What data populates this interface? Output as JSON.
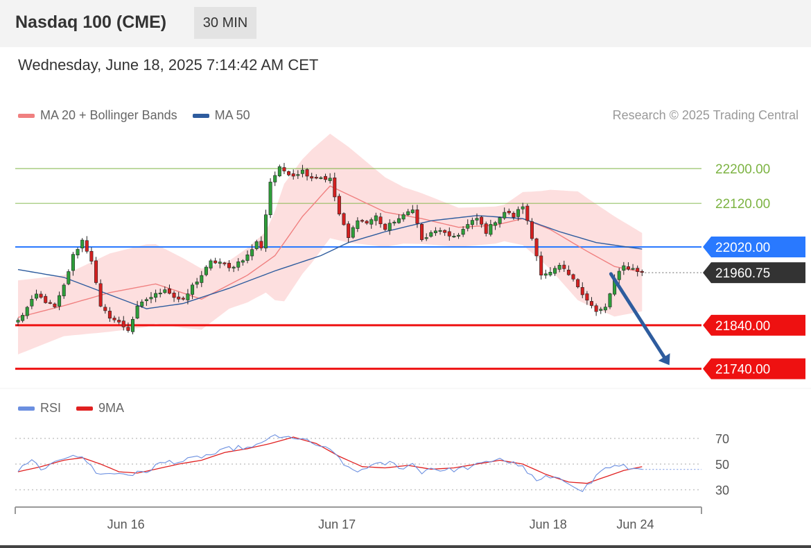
{
  "header": {
    "title": "Nasdaq 100 (CME)",
    "interval": "30 MIN"
  },
  "datetime": "Wednesday, June 18, 2025 7:14:42 AM CET",
  "legend": {
    "bb_label": "MA 20 + Bollinger Bands",
    "bb_color": "#f08080",
    "ma50_label": "MA 50",
    "ma50_color": "#2e5c9e"
  },
  "copyright": "Research © 2025 Trading Central",
  "rsi_legend": {
    "rsi_label": "RSI",
    "rsi_color": "#6b8fe0",
    "ma9_label": "9MA",
    "ma9_color": "#e02020"
  },
  "chart_data": [
    {
      "type": "candlestick",
      "instrument": "Nasdaq 100 (CME)",
      "interval": "30 MIN",
      "ylim": [
        21725,
        22275
      ],
      "x_ticks": [
        {
          "label": "Jun 16",
          "index": 22
        },
        {
          "label": "Jun 17",
          "index": 68
        },
        {
          "label": "Jun 18",
          "index": 114
        },
        {
          "label": "Jun 24",
          "index": 133
        }
      ],
      "levels": [
        {
          "value": 22200.0,
          "label": "22200.00",
          "kind": "resistance",
          "color": "#7cb342"
        },
        {
          "value": 22120.0,
          "label": "22120.00",
          "kind": "resistance",
          "color": "#7cb342"
        },
        {
          "value": 22020.0,
          "label": "22020.00",
          "kind": "pivot",
          "color": "#2979ff"
        },
        {
          "value": 21840.0,
          "label": "21840.00",
          "kind": "support",
          "color": "#ee1111"
        },
        {
          "value": 21740.0,
          "label": "21740.00",
          "kind": "support",
          "color": "#ee1111"
        }
      ],
      "last_price": {
        "value": 21960.75,
        "label": "21960.75"
      },
      "forecast": {
        "from_index": 128,
        "from_value": 21958,
        "to_index": 135,
        "to_value": 21742,
        "color": "#2e5c9e"
      },
      "close_anchors": [
        [
          0,
          21850
        ],
        [
          4,
          21910
        ],
        [
          8,
          21880
        ],
        [
          10,
          21930
        ],
        [
          12,
          22000
        ],
        [
          14,
          22035
        ],
        [
          16,
          21990
        ],
        [
          18,
          21880
        ],
        [
          20,
          21860
        ],
        [
          22,
          21845
        ],
        [
          24,
          21830
        ],
        [
          26,
          21880
        ],
        [
          28,
          21900
        ],
        [
          30,
          21910
        ],
        [
          32,
          21925
        ],
        [
          34,
          21905
        ],
        [
          36,
          21895
        ],
        [
          38,
          21930
        ],
        [
          40,
          21955
        ],
        [
          42,
          21985
        ],
        [
          44,
          21985
        ],
        [
          46,
          21970
        ],
        [
          48,
          21985
        ],
        [
          50,
          22000
        ],
        [
          52,
          22030
        ],
        [
          53,
          22020
        ],
        [
          55,
          22170
        ],
        [
          57,
          22200
        ],
        [
          60,
          22185
        ],
        [
          62,
          22195
        ],
        [
          64,
          22180
        ],
        [
          66,
          22180
        ],
        [
          68,
          22175
        ],
        [
          70,
          22095
        ],
        [
          72,
          22040
        ],
        [
          74,
          22085
        ],
        [
          76,
          22075
        ],
        [
          78,
          22090
        ],
        [
          80,
          22060
        ],
        [
          82,
          22080
        ],
        [
          84,
          22090
        ],
        [
          86,
          22110
        ],
        [
          88,
          22035
        ],
        [
          90,
          22050
        ],
        [
          92,
          22060
        ],
        [
          94,
          22040
        ],
        [
          96,
          22050
        ],
        [
          98,
          22070
        ],
        [
          100,
          22085
        ],
        [
          102,
          22055
        ],
        [
          104,
          22080
        ],
        [
          106,
          22100
        ],
        [
          108,
          22090
        ],
        [
          110,
          22115
        ],
        [
          112,
          22040
        ],
        [
          114,
          21960
        ],
        [
          116,
          21960
        ],
        [
          118,
          21975
        ],
        [
          120,
          21955
        ],
        [
          122,
          21930
        ],
        [
          124,
          21900
        ],
        [
          126,
          21870
        ],
        [
          128,
          21880
        ],
        [
          130,
          21945
        ],
        [
          132,
          21975
        ],
        [
          134,
          21970
        ],
        [
          136,
          21962
        ]
      ],
      "ma20_anchors": [
        [
          0,
          21858
        ],
        [
          10,
          21885
        ],
        [
          20,
          21915
        ],
        [
          30,
          21935
        ],
        [
          40,
          21900
        ],
        [
          50,
          21955
        ],
        [
          56,
          22000
        ],
        [
          62,
          22090
        ],
        [
          68,
          22160
        ],
        [
          74,
          22130
        ],
        [
          80,
          22100
        ],
        [
          88,
          22085
        ],
        [
          96,
          22065
        ],
        [
          104,
          22070
        ],
        [
          110,
          22085
        ],
        [
          116,
          22060
        ],
        [
          124,
          22010
        ],
        [
          130,
          21975
        ],
        [
          136,
          21962
        ]
      ],
      "ma50_anchors": [
        [
          0,
          21968
        ],
        [
          10,
          21950
        ],
        [
          20,
          21910
        ],
        [
          28,
          21878
        ],
        [
          36,
          21890
        ],
        [
          46,
          21925
        ],
        [
          56,
          21965
        ],
        [
          66,
          22000
        ],
        [
          72,
          22030
        ],
        [
          80,
          22055
        ],
        [
          90,
          22080
        ],
        [
          100,
          22092
        ],
        [
          110,
          22085
        ],
        [
          118,
          22055
        ],
        [
          126,
          22030
        ],
        [
          136,
          22015
        ]
      ],
      "band_width_anchors": [
        [
          0,
          85
        ],
        [
          10,
          70
        ],
        [
          20,
          90
        ],
        [
          28,
          95
        ],
        [
          36,
          80
        ],
        [
          46,
          55
        ],
        [
          54,
          70
        ],
        [
          58,
          135
        ],
        [
          64,
          130
        ],
        [
          72,
          110
        ],
        [
          84,
          65
        ],
        [
          96,
          45
        ],
        [
          106,
          42
        ],
        [
          114,
          80
        ],
        [
          122,
          125
        ],
        [
          130,
          115
        ],
        [
          136,
          90
        ]
      ],
      "count": 137
    },
    {
      "type": "line",
      "title": "RSI",
      "ylim": [
        25,
        80
      ],
      "y_ticks": [
        70,
        50,
        30
      ],
      "series": [
        {
          "name": "RSI",
          "color": "#6b8fe0",
          "anchors": [
            [
              0,
              45
            ],
            [
              3,
              52
            ],
            [
              6,
              45
            ],
            [
              9,
              54
            ],
            [
              12,
              58
            ],
            [
              15,
              52
            ],
            [
              17,
              44
            ],
            [
              19,
              42
            ],
            [
              22,
              43
            ],
            [
              25,
              42
            ],
            [
              28,
              44
            ],
            [
              30,
              49
            ],
            [
              33,
              52
            ],
            [
              36,
              52
            ],
            [
              40,
              56
            ],
            [
              43,
              58
            ],
            [
              46,
              62
            ],
            [
              49,
              63
            ],
            [
              51,
              62
            ],
            [
              53,
              66
            ],
            [
              55,
              72
            ],
            [
              57,
              70
            ],
            [
              60,
              71
            ],
            [
              62,
              69
            ],
            [
              64,
              66
            ],
            [
              66,
              64
            ],
            [
              68,
              60
            ],
            [
              70,
              55
            ],
            [
              72,
              46
            ],
            [
              74,
              44
            ],
            [
              76,
              48
            ],
            [
              78,
              49
            ],
            [
              81,
              51
            ],
            [
              84,
              47
            ],
            [
              86,
              50
            ],
            [
              88,
              44
            ],
            [
              90,
              47
            ],
            [
              93,
              45
            ],
            [
              96,
              46
            ],
            [
              99,
              48
            ],
            [
              102,
              51
            ],
            [
              105,
              55
            ],
            [
              107,
              51
            ],
            [
              109,
              50
            ],
            [
              111,
              44
            ],
            [
              113,
              36
            ],
            [
              115,
              40
            ],
            [
              117,
              38
            ],
            [
              119,
              37
            ],
            [
              121,
              34
            ],
            [
              123,
              30
            ],
            [
              125,
              36
            ],
            [
              127,
              45
            ],
            [
              129,
              48
            ],
            [
              132,
              48
            ],
            [
              134,
              46
            ],
            [
              136,
              47
            ]
          ]
        },
        {
          "name": "9MA",
          "color": "#e02020",
          "anchors": [
            [
              0,
              44
            ],
            [
              5,
              48
            ],
            [
              10,
              53
            ],
            [
              14,
              55
            ],
            [
              18,
              50
            ],
            [
              22,
              44
            ],
            [
              26,
              43
            ],
            [
              30,
              46
            ],
            [
              35,
              50
            ],
            [
              40,
              53
            ],
            [
              45,
              59
            ],
            [
              50,
              62
            ],
            [
              55,
              66
            ],
            [
              60,
              71
            ],
            [
              65,
              66
            ],
            [
              70,
              56
            ],
            [
              75,
              48
            ],
            [
              80,
              47
            ],
            [
              85,
              49
            ],
            [
              90,
              46
            ],
            [
              95,
              47
            ],
            [
              100,
              50
            ],
            [
              105,
              53
            ],
            [
              110,
              50
            ],
            [
              115,
              42
            ],
            [
              120,
              36
            ],
            [
              124,
              35
            ],
            [
              128,
              40
            ],
            [
              132,
              45
            ],
            [
              136,
              48
            ]
          ]
        }
      ]
    }
  ]
}
